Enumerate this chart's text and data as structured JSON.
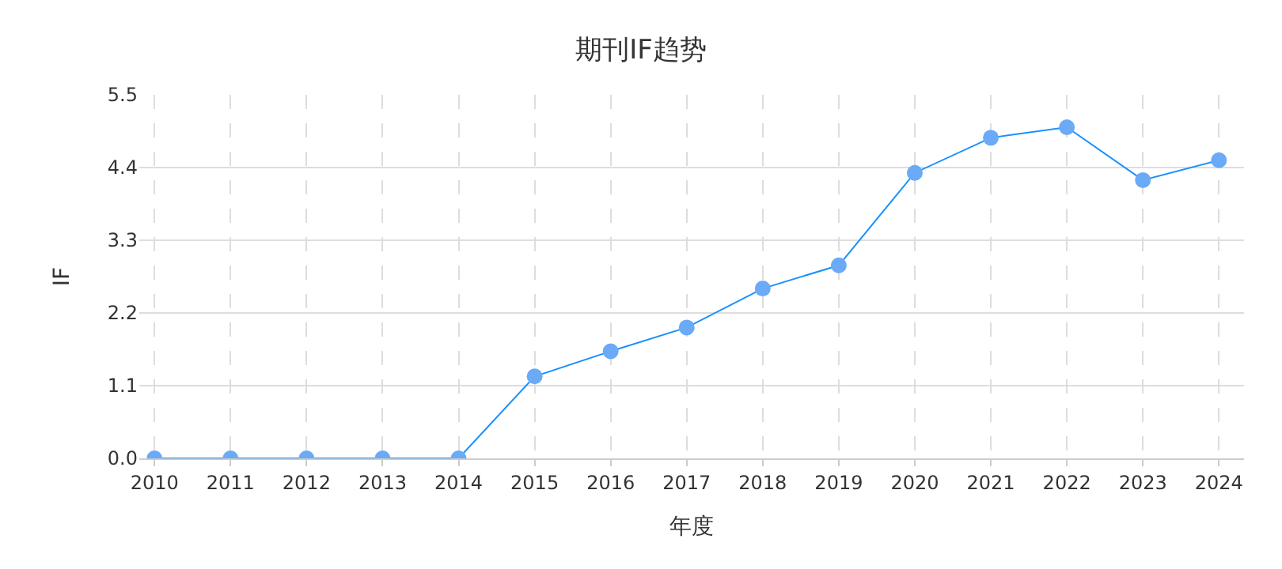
{
  "chart_data": {
    "type": "line",
    "title": "期刊IF趋势",
    "xlabel": "年度",
    "ylabel": "IF",
    "categories": [
      "2010",
      "2011",
      "2012",
      "2013",
      "2014",
      "2015",
      "2016",
      "2017",
      "2018",
      "2019",
      "2020",
      "2021",
      "2022",
      "2023",
      "2024"
    ],
    "series": [
      {
        "color": "#1890ff",
        "values": [
          0,
          0,
          0,
          0,
          0,
          1.24,
          1.62,
          1.98,
          2.57,
          2.92,
          4.32,
          4.85,
          5.01,
          4.21,
          4.51
        ]
      }
    ],
    "ylim": [
      0,
      5.5
    ],
    "yticks": [
      {
        "value": 0,
        "label": "0.0"
      },
      1.1,
      2.2,
      3.3,
      4.4,
      5.5
    ],
    "grid": true,
    "marker": "circle",
    "line_style": "solid"
  }
}
